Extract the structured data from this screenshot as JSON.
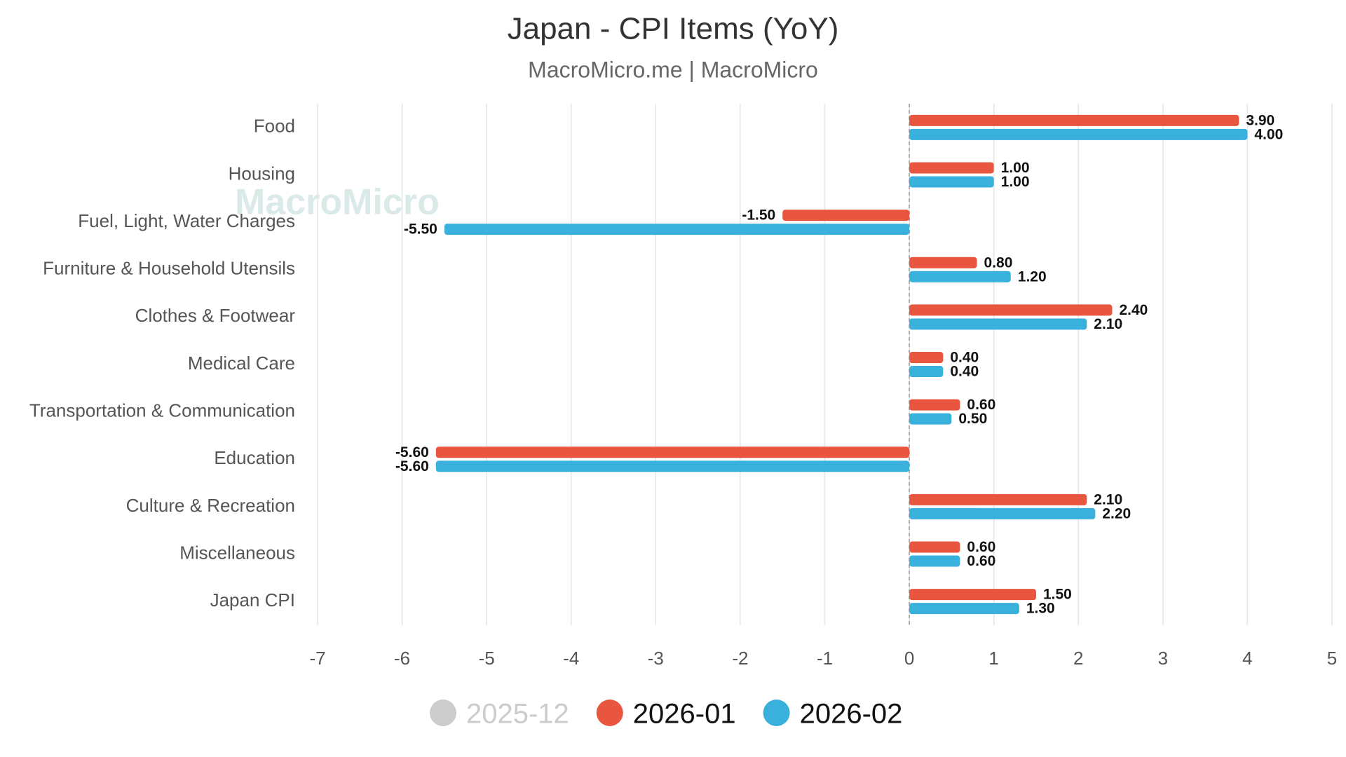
{
  "chart_data": {
    "type": "barh",
    "title": "Japan - CPI Items (YoY)",
    "subtitle": "MacroMicro.me | MacroMicro",
    "watermark": "MacroMicro",
    "categories": [
      "Food",
      "Housing",
      "Fuel, Light, Water Charges",
      "Furniture & Household Utensils",
      "Clothes & Footwear",
      "Medical Care",
      "Transportation & Communication",
      "Education",
      "Culture & Recreation",
      "Miscellaneous",
      "Japan CPI"
    ],
    "series": [
      {
        "name": "2025-12",
        "color": "#cccccc",
        "visible": false,
        "values": [
          null,
          null,
          null,
          null,
          null,
          null,
          null,
          null,
          null,
          null,
          null
        ]
      },
      {
        "name": "2026-01",
        "color": "#e8563f",
        "visible": true,
        "values": [
          3.9,
          1.0,
          -1.5,
          0.8,
          2.4,
          0.4,
          0.6,
          -5.6,
          2.1,
          0.6,
          1.5
        ],
        "value_labels": [
          "3.90",
          "1.00",
          "-1.50",
          "0.80",
          "2.40",
          "0.40",
          "0.60",
          "-5.60",
          "2.10",
          "0.60",
          "1.50"
        ]
      },
      {
        "name": "2026-02",
        "color": "#3ab0dc",
        "visible": true,
        "values": [
          4.0,
          1.0,
          -5.5,
          1.2,
          2.1,
          0.4,
          0.5,
          -5.6,
          2.2,
          0.6,
          1.3
        ],
        "value_labels": [
          "4.00",
          "1.00",
          "-5.50",
          "1.20",
          "2.10",
          "0.40",
          "0.50",
          "-5.60",
          "2.20",
          "0.60",
          "1.30"
        ]
      }
    ],
    "xlim": [
      -7,
      5
    ],
    "xticks": [
      -7,
      -6,
      -5,
      -4,
      -3,
      -2,
      -1,
      0,
      1,
      2,
      3,
      4,
      5
    ],
    "grid": true
  }
}
